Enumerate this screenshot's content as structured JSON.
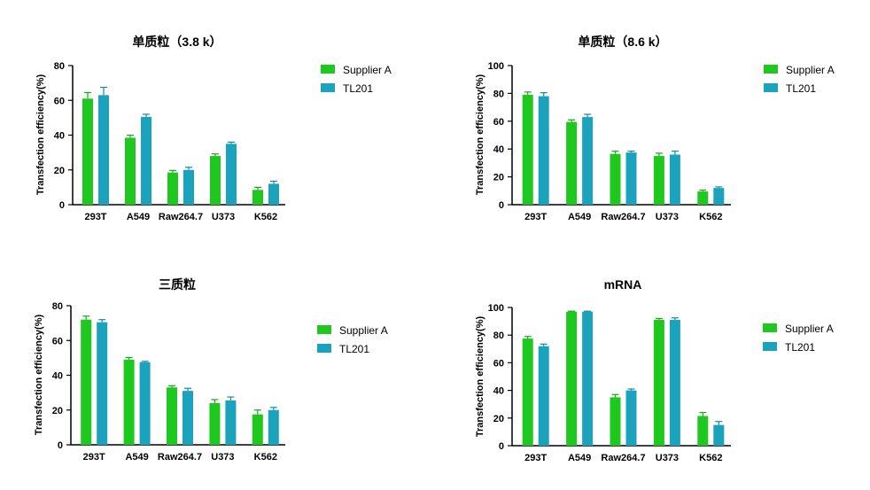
{
  "colors": {
    "series_a": "#1fc81f",
    "series_b": "#1ba3bd",
    "axis": "#000000",
    "error_a": "#1aa61a",
    "error_b": "#178aa0"
  },
  "chart_data": [
    {
      "type": "bar",
      "title": "单质粒（3.8 k）",
      "xlabel": "",
      "ylabel": "Transfection efficiency(%)",
      "categories": [
        "293T",
        "A549",
        "Raw264.7",
        "U373",
        "K562"
      ],
      "ylim": [
        0,
        80
      ],
      "yticks": [
        0,
        20,
        40,
        60,
        80
      ],
      "legend_position": "right",
      "series": [
        {
          "name": "Supplier A",
          "values": [
            61,
            38.5,
            18.5,
            28,
            8.5
          ],
          "errors": [
            3.5,
            1.5,
            1.2,
            1.2,
            1.5
          ]
        },
        {
          "name": "TL201",
          "values": [
            63,
            50.5,
            20,
            35,
            12
          ],
          "errors": [
            4.5,
            1.5,
            1.5,
            1.0,
            1.5
          ]
        }
      ]
    },
    {
      "type": "bar",
      "title": "单质粒（8.6 k）",
      "xlabel": "",
      "ylabel": "Transfection efficiency(%)",
      "categories": [
        "293T",
        "A549",
        "Raw264.7",
        "U373",
        "K562"
      ],
      "ylim": [
        0,
        100
      ],
      "yticks": [
        0,
        20,
        40,
        60,
        80,
        100
      ],
      "legend_position": "right",
      "series": [
        {
          "name": "Supplier A",
          "values": [
            79,
            59.5,
            36.5,
            35,
            9.5
          ],
          "errors": [
            2.0,
            1.5,
            2.0,
            2.0,
            1.0
          ]
        },
        {
          "name": "TL201",
          "values": [
            78,
            63,
            37.5,
            36,
            12
          ],
          "errors": [
            2.5,
            2.0,
            1.0,
            2.5,
            0.8
          ]
        }
      ]
    },
    {
      "type": "bar",
      "title": "三质粒",
      "xlabel": "",
      "ylabel": "Transfection efficiency(%)",
      "categories": [
        "293T",
        "A549",
        "Raw264.7",
        "U373",
        "K562"
      ],
      "ylim": [
        0,
        80
      ],
      "yticks": [
        0,
        20,
        40,
        60,
        80
      ],
      "legend_position": "right",
      "series": [
        {
          "name": "Supplier A",
          "values": [
            72,
            49,
            33,
            24,
            17.5
          ],
          "errors": [
            2.0,
            1.2,
            1.0,
            2.0,
            2.5
          ]
        },
        {
          "name": "TL201",
          "values": [
            70.5,
            47.5,
            31,
            25.5,
            20
          ],
          "errors": [
            1.5,
            0.5,
            1.5,
            2.0,
            1.5
          ]
        }
      ]
    },
    {
      "type": "bar",
      "title": "mRNA",
      "xlabel": "",
      "ylabel": "Transfection efficiency(%)",
      "categories": [
        "293T",
        "A549",
        "Raw264.7",
        "U373",
        "K562"
      ],
      "ylim": [
        0,
        100
      ],
      "yticks": [
        0,
        20,
        40,
        60,
        80,
        100
      ],
      "legend_position": "right",
      "series": [
        {
          "name": "Supplier A",
          "values": [
            77.5,
            97,
            35,
            91,
            21.5
          ],
          "errors": [
            1.5,
            0.3,
            2.0,
            1.0,
            2.5
          ]
        },
        {
          "name": "TL201",
          "values": [
            72,
            97,
            40,
            91,
            15
          ],
          "errors": [
            1.5,
            0.3,
            1.0,
            1.5,
            2.5
          ]
        }
      ]
    }
  ]
}
